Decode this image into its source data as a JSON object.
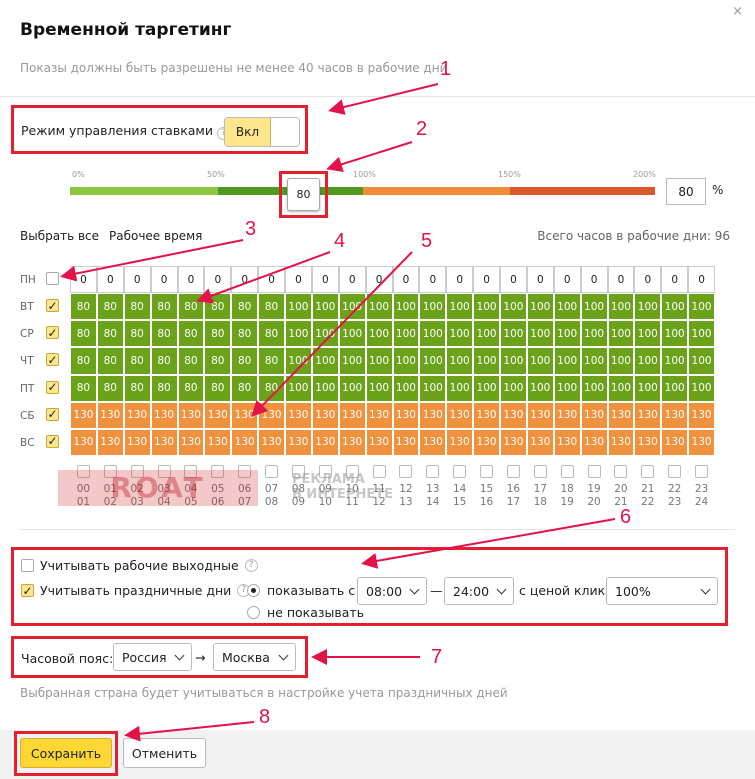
{
  "dialog": {
    "title": "Временной таргетинг",
    "subtitle": "Показы должны быть разрешены не менее 40 часов в рабочие дни",
    "close_icon": "×"
  },
  "bid_mode": {
    "label": "Режим управления ставками",
    "help": "?",
    "toggle_label": "Вкл",
    "enabled": true
  },
  "slider": {
    "scale": [
      "0%",
      "50%",
      "100%",
      "150%",
      "200%"
    ],
    "handle_value": "80",
    "value": 80,
    "input_value": "80",
    "unit": "%",
    "colors": {
      "green_light": "#8cc63f",
      "green_dark": "#4f9a1f",
      "orange": "#f08c3a",
      "orange_dark": "#d85a2a",
      "grey": "#ccc"
    }
  },
  "links": {
    "select_all": "Выбрать все",
    "work_time": "Рабочее время"
  },
  "total_hours": "Всего часов в рабочие дни: 96",
  "days": [
    {
      "name": "ПН",
      "checked": false,
      "values": [
        "0",
        "0",
        "0",
        "0",
        "0",
        "0",
        "0",
        "0",
        "0",
        "0",
        "0",
        "0",
        "0",
        "0",
        "0",
        "0",
        "0",
        "0",
        "0",
        "0",
        "0",
        "0",
        "0",
        "0"
      ]
    },
    {
      "name": "ВТ",
      "checked": true,
      "values": [
        "80",
        "80",
        "80",
        "80",
        "80",
        "80",
        "80",
        "80",
        "100",
        "100",
        "100",
        "100",
        "100",
        "100",
        "100",
        "100",
        "100",
        "100",
        "100",
        "100",
        "100",
        "100",
        "100",
        "100"
      ]
    },
    {
      "name": "СР",
      "checked": true,
      "values": [
        "80",
        "80",
        "80",
        "80",
        "80",
        "80",
        "80",
        "80",
        "100",
        "100",
        "100",
        "100",
        "100",
        "100",
        "100",
        "100",
        "100",
        "100",
        "100",
        "100",
        "100",
        "100",
        "100",
        "100"
      ]
    },
    {
      "name": "ЧТ",
      "checked": true,
      "values": [
        "80",
        "80",
        "80",
        "80",
        "80",
        "80",
        "80",
        "80",
        "100",
        "100",
        "100",
        "100",
        "100",
        "100",
        "100",
        "100",
        "100",
        "100",
        "100",
        "100",
        "100",
        "100",
        "100",
        "100"
      ]
    },
    {
      "name": "ПТ",
      "checked": true,
      "values": [
        "80",
        "80",
        "80",
        "80",
        "80",
        "80",
        "80",
        "80",
        "100",
        "100",
        "100",
        "100",
        "100",
        "100",
        "100",
        "100",
        "100",
        "100",
        "100",
        "100",
        "100",
        "100",
        "100",
        "100"
      ]
    },
    {
      "name": "СБ",
      "checked": true,
      "values": [
        "130",
        "130",
        "130",
        "130",
        "130",
        "130",
        "130",
        "130",
        "130",
        "130",
        "130",
        "130",
        "130",
        "130",
        "130",
        "130",
        "130",
        "130",
        "130",
        "130",
        "130",
        "130",
        "130",
        "130"
      ]
    },
    {
      "name": "ВС",
      "checked": true,
      "values": [
        "130",
        "130",
        "130",
        "130",
        "130",
        "130",
        "130",
        "130",
        "130",
        "130",
        "130",
        "130",
        "130",
        "130",
        "130",
        "130",
        "130",
        "130",
        "130",
        "130",
        "130",
        "130",
        "130",
        "130"
      ]
    }
  ],
  "hours": [
    [
      "00",
      "01"
    ],
    [
      "01",
      "02"
    ],
    [
      "02",
      "03"
    ],
    [
      "03",
      "04"
    ],
    [
      "04",
      "05"
    ],
    [
      "05",
      "06"
    ],
    [
      "06",
      "07"
    ],
    [
      "07",
      "08"
    ],
    [
      "08",
      "09"
    ],
    [
      "09",
      "10"
    ],
    [
      "10",
      "11"
    ],
    [
      "11",
      "12"
    ],
    [
      "12",
      "13"
    ],
    [
      "13",
      "14"
    ],
    [
      "14",
      "15"
    ],
    [
      "15",
      "16"
    ],
    [
      "16",
      "17"
    ],
    [
      "17",
      "18"
    ],
    [
      "18",
      "19"
    ],
    [
      "19",
      "20"
    ],
    [
      "20",
      "21"
    ],
    [
      "21",
      "22"
    ],
    [
      "22",
      "23"
    ],
    [
      "23",
      "24"
    ]
  ],
  "watermark": {
    "left": "ROAT",
    "right_line1": "РЕКЛАМА",
    "right_line2": "В ИНТЕРНЕТЕ"
  },
  "options": {
    "working_weekends": {
      "label": "Учитывать рабочие выходные",
      "checked": false
    },
    "holidays": {
      "label": "Учитывать праздничные дни",
      "checked": true
    },
    "show_radio": "показывать с",
    "hide_radio": "не показывать",
    "from_time": "08:00",
    "dash": "—",
    "to_time": "24:00",
    "price_label": "с ценой клика",
    "price_value": "100%"
  },
  "timezone": {
    "label": "Часовой пояс:",
    "country": "Россия",
    "arrow": "→",
    "city": "Москва",
    "note": "Выбранная страна будет учитываться в настройке учета праздничных дней"
  },
  "footer": {
    "save": "Сохранить",
    "cancel": "Отменить"
  },
  "annotations": [
    "1",
    "2",
    "3",
    "4",
    "5",
    "6",
    "7",
    "8"
  ]
}
